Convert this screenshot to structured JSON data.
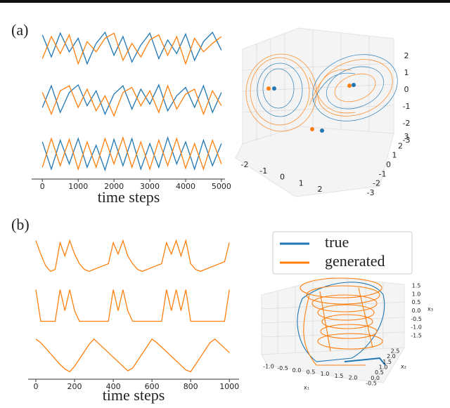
{
  "panel_a": {
    "label": "(a)",
    "time_series": {
      "type": "line",
      "xlabel": "time steps",
      "xlim": [
        -300,
        5100
      ],
      "xticks": [
        0,
        1000,
        2000,
        3000,
        4000,
        5000
      ],
      "ylim": [
        -1.2,
        1.2
      ],
      "x": [
        0,
        250,
        500,
        750,
        1000,
        1250,
        1500,
        1750,
        2000,
        2250,
        2500,
        2750,
        3000,
        3250,
        3500,
        3750,
        4000,
        4250,
        4500,
        4750,
        5000
      ],
      "traces": [
        {
          "series": [
            {
              "color": "#1f77b4",
              "values": [
                0.8,
                -0.5,
                0.9,
                -0.2,
                0.6,
                -0.9,
                0.3,
                0.95,
                -0.4,
                0.7,
                -0.8,
                0.2,
                0.9,
                -0.6,
                0.5,
                -0.3,
                0.85,
                -0.7,
                0.4,
                0.95,
                -0.1
              ]
            },
            {
              "color": "#ff7f0e",
              "values": [
                -0.6,
                0.7,
                -0.3,
                0.8,
                -0.9,
                0.4,
                -0.2,
                0.6,
                0.9,
                -0.7,
                0.3,
                -0.5,
                0.5,
                0.8,
                -0.4,
                0.7,
                -0.9,
                0.6,
                -0.2,
                0.3,
                0.7
              ]
            }
          ]
        },
        {
          "series": [
            {
              "color": "#1f77b4",
              "values": [
                -0.4,
                0.9,
                -0.7,
                0.5,
                0.95,
                -0.3,
                0.6,
                -0.8,
                0.4,
                0.9,
                -0.5,
                0.7,
                -0.2,
                0.95,
                -0.6,
                0.3,
                0.8,
                -0.4,
                0.9,
                -0.7,
                0.5
              ]
            },
            {
              "color": "#ff7f0e",
              "values": [
                0.5,
                -0.8,
                0.6,
                0.9,
                -0.4,
                0.7,
                -0.6,
                0.3,
                -0.9,
                0.5,
                0.8,
                -0.3,
                0.6,
                -0.7,
                0.9,
                -0.5,
                0.4,
                0.7,
                -0.8,
                0.6,
                -0.3
              ]
            }
          ]
        },
        {
          "series": [
            {
              "color": "#1f77b4",
              "values": [
                0.7,
                -0.9,
                0.8,
                -0.6,
                0.9,
                -0.8,
                0.5,
                -0.95,
                0.85,
                -0.7,
                0.9,
                -0.9,
                0.6,
                -0.8,
                0.95,
                -0.6,
                0.7,
                -0.9,
                0.8,
                -0.7,
                0.6
              ]
            },
            {
              "color": "#ff7f0e",
              "values": [
                -0.8,
                0.9,
                -0.7,
                0.85,
                -0.9,
                0.7,
                -0.8,
                0.9,
                -0.6,
                0.95,
                -0.8,
                0.7,
                -0.9,
                0.8,
                -0.7,
                0.9,
                -0.85,
                0.6,
                -0.9,
                0.8,
                -0.6
              ]
            }
          ]
        }
      ]
    },
    "state_space": {
      "type": "scatter3d",
      "x_ticks": [
        -2,
        -1,
        0,
        1,
        2
      ],
      "y_ticks": [
        3,
        2,
        1,
        0,
        -1,
        -2,
        -3
      ],
      "z_ticks": [
        2,
        1,
        0,
        -1,
        -2,
        -3
      ]
    }
  },
  "panel_b": {
    "label": "(b)",
    "time_series": {
      "type": "line",
      "xlabel": "time steps",
      "xlim": [
        -40,
        1050
      ],
      "xticks": [
        0,
        200,
        400,
        600,
        800,
        1000
      ],
      "ylim": [
        -1.1,
        1.1
      ],
      "x": [
        0,
        25,
        50,
        75,
        100,
        125,
        150,
        175,
        200,
        225,
        250,
        275,
        300,
        325,
        350,
        375,
        400,
        425,
        450,
        475,
        500,
        525,
        550,
        575,
        600,
        625,
        650,
        675,
        700,
        725,
        750,
        775,
        800,
        825,
        850,
        875,
        900,
        925,
        950,
        975,
        1000
      ],
      "traces": [
        {
          "series": [
            {
              "color": "#ff7f0e",
              "values": [
                1,
                0.3,
                -0.3,
                -0.6,
                -0.5,
                0.9,
                0.2,
                1,
                0.3,
                -0.2,
                -0.5,
                -0.6,
                -0.5,
                -0.4,
                -0.3,
                -0.2,
                0.9,
                0.3,
                1,
                0.2,
                -0.2,
                -0.5,
                -0.6,
                -0.5,
                -0.4,
                -0.3,
                -0.2,
                0.9,
                0.3,
                1,
                0.2,
                1,
                -0.2,
                -0.5,
                -0.6,
                -0.5,
                -0.4,
                -0.3,
                -0.2,
                -0.1,
                0.9
              ]
            }
          ]
        },
        {
          "series": [
            {
              "color": "#ff7f0e",
              "values": [
                1,
                -0.8,
                -0.8,
                -0.8,
                -0.8,
                1,
                -0.2,
                1,
                -0.2,
                -0.8,
                -0.8,
                -0.8,
                -0.8,
                -0.8,
                -0.8,
                -0.8,
                1,
                -0.2,
                1,
                -0.2,
                -0.8,
                -0.8,
                -0.8,
                -0.8,
                -0.8,
                -0.8,
                -0.8,
                1,
                -0.2,
                1,
                -0.2,
                1,
                -0.8,
                -0.8,
                -0.8,
                -0.8,
                -0.8,
                -0.8,
                -0.8,
                -0.8,
                1
              ]
            }
          ]
        },
        {
          "series": [
            {
              "color": "#ff7f0e",
              "values": [
                0.8,
                0.6,
                0.3,
                0,
                -0.3,
                -0.6,
                -0.85,
                -1,
                -0.7,
                -0.3,
                0.1,
                0.5,
                0.8,
                0.55,
                0.3,
                0.05,
                -0.2,
                -0.45,
                -0.7,
                -0.95,
                -0.8,
                -0.4,
                0,
                0.4,
                0.8,
                0.6,
                0.35,
                0.1,
                -0.15,
                -0.4,
                -0.65,
                -0.9,
                -1,
                -0.6,
                -0.2,
                0.2,
                0.6,
                0.8,
                0.55,
                0.3,
                0.05
              ]
            }
          ]
        }
      ]
    },
    "state_space": {
      "type": "line3d",
      "series": [
        {
          "name": "true",
          "color": "#1f77b4"
        },
        {
          "name": "generated",
          "color": "#ff7f0e"
        }
      ],
      "x_label": "x₁",
      "y_label": "x₂",
      "z_label": "x₃",
      "x_ticks": [
        "-1.0",
        "-0.5",
        "0.0",
        "0.5",
        "1.0",
        "1.5",
        "2.0"
      ],
      "y_ticks": [
        "2.5",
        "2.0",
        "1.5",
        "1.0",
        "0.5",
        "0.0",
        "-0.5"
      ],
      "z_ticks": [
        "1.5",
        "1.0",
        "0.5",
        "0.0",
        "-0.5",
        "-1.0",
        "-1.5"
      ]
    }
  }
}
